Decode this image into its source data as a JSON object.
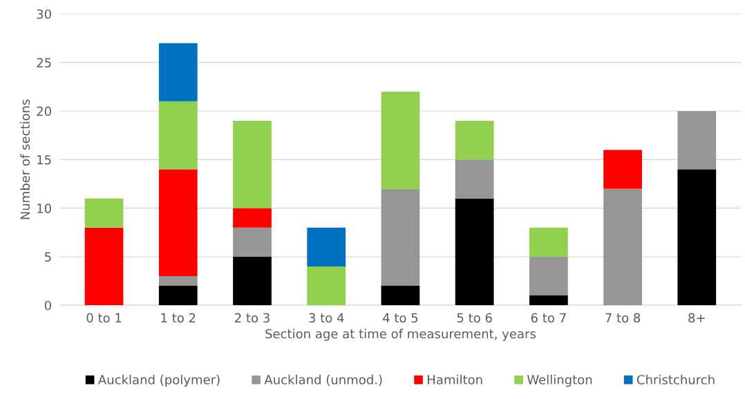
{
  "chart_data": {
    "type": "bar",
    "stacked": true,
    "xlabel": "Section age at time of measurement, years",
    "ylabel": "Number of sections",
    "categories": [
      "0 to 1",
      "1 to 2",
      "2 to 3",
      "3 to 4",
      "4 to 5",
      "5 to 6",
      "6 to 7",
      "7 to 8",
      "8+"
    ],
    "series": [
      {
        "name": "Auckland (polymer)",
        "color": "#000000",
        "values": [
          0,
          2,
          5,
          0,
          2,
          11,
          1,
          0,
          14
        ]
      },
      {
        "name": "Auckland (unmod.)",
        "color": "#969696",
        "values": [
          0,
          1,
          3,
          0,
          10,
          4,
          4,
          12,
          6
        ]
      },
      {
        "name": "Hamilton",
        "color": "#ff0000",
        "values": [
          8,
          11,
          2,
          0,
          0,
          0,
          0,
          4,
          0
        ]
      },
      {
        "name": "Wellington",
        "color": "#92d050",
        "values": [
          3,
          7,
          9,
          4,
          10,
          4,
          3,
          0,
          0
        ]
      },
      {
        "name": "Christchurch",
        "color": "#0070c0",
        "values": [
          0,
          6,
          0,
          4,
          0,
          0,
          0,
          0,
          0
        ]
      }
    ],
    "ylim": [
      0,
      30
    ],
    "yticks": [
      0,
      5,
      10,
      15,
      20,
      25,
      30
    ],
    "grid": "y",
    "legend": "bottom"
  }
}
